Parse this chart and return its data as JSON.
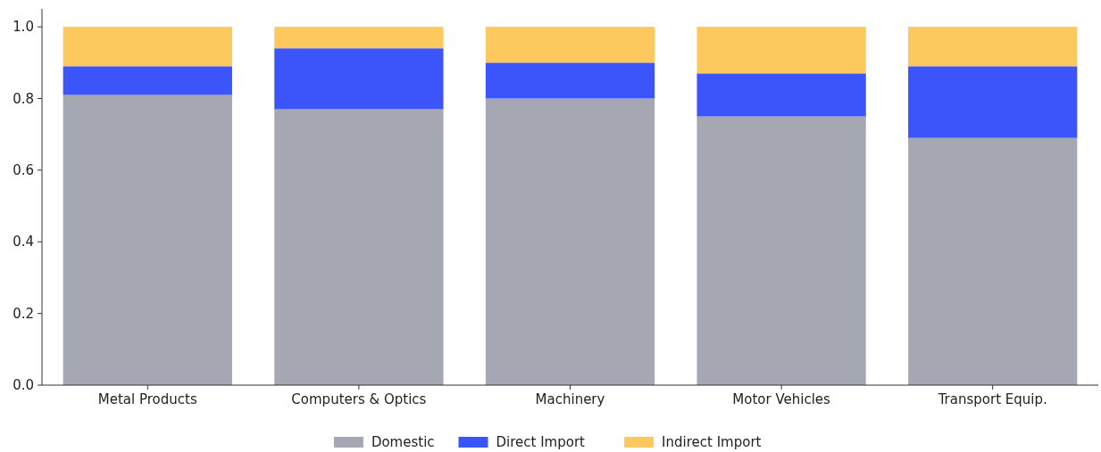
{
  "chart_data": {
    "type": "bar",
    "stacked": true,
    "categories": [
      "Metal Products",
      "Computers & Optics",
      "Machinery",
      "Motor Vehicles",
      "Transport Equip."
    ],
    "series": [
      {
        "name": "Domestic",
        "color": "#a5a7b2",
        "values": [
          0.81,
          0.77,
          0.8,
          0.75,
          0.69
        ]
      },
      {
        "name": "Direct Import",
        "color": "#3b55fb",
        "values": [
          0.08,
          0.17,
          0.1,
          0.12,
          0.2
        ]
      },
      {
        "name": "Indirect Import",
        "color": "#fdc85e",
        "values": [
          0.11,
          0.06,
          0.1,
          0.13,
          0.11
        ]
      }
    ],
    "ylim": [
      0,
      1.05
    ],
    "yticks": [
      {
        "value": 0,
        "label": "0.0"
      },
      {
        "value": 0.2,
        "label": "0.2"
      },
      {
        "value": 0.4,
        "label": "0.4"
      },
      {
        "value": 0.6,
        "label": "0.6"
      },
      {
        "value": 0.8,
        "label": "0.8"
      },
      {
        "value": 1,
        "label": "1.0"
      }
    ],
    "grid": false,
    "legend": "bottom"
  }
}
